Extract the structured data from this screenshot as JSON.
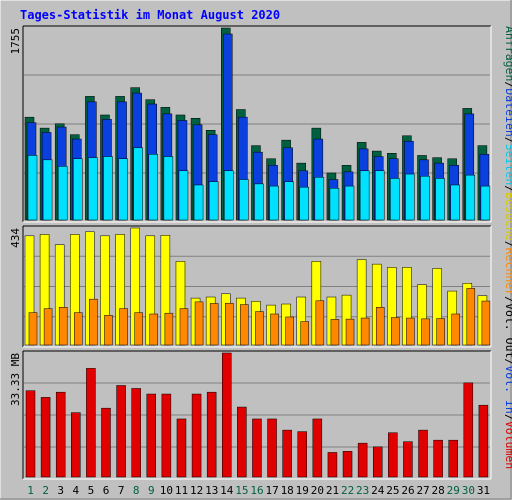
{
  "title": "Tages-Statistik im Monat August 2020",
  "colors": {
    "page_bg": "#c0c0c0",
    "plot_bg": "#c0c0c0",
    "title": "#0000ff",
    "anfragen": "#006040",
    "dateien": "#0a3fe0",
    "seiten": "#00e0ff",
    "besuche": "#ffff00",
    "rechner": "#ff8800",
    "volumen": "#e00000",
    "weekend_label": "#006040",
    "weekday_label": "#000000"
  },
  "right_labels": {
    "top": [
      {
        "text": "Anfragen",
        "color": "#006040"
      },
      {
        "text": "/",
        "color": "#000000"
      },
      {
        "text": "Dateien",
        "color": "#0a3fe0"
      },
      {
        "text": "/",
        "color": "#000000"
      },
      {
        "text": "Seiten",
        "color": "#00c8e8"
      },
      {
        "text": "/",
        "color": "#000000"
      },
      {
        "text": "Besuche",
        "color": "#d8c800"
      },
      {
        "text": "/",
        "color": "#000000"
      },
      {
        "text": "Rechner",
        "color": "#ff8800"
      },
      {
        "text": "/",
        "color": "#000000"
      },
      {
        "text": "Vol. Out",
        "color": "#000000"
      },
      {
        "text": "/",
        "color": "#000000"
      },
      {
        "text": "Vol. In",
        "color": "#0a3fe0"
      },
      {
        "text": "/",
        "color": "#000000"
      },
      {
        "text": "Volumen",
        "color": "#e00000"
      }
    ]
  },
  "chart_data": [
    {
      "type": "bar",
      "panel": "top",
      "ymax_label": "1755",
      "ymax": 1755,
      "categories": [
        "1",
        "2",
        "3",
        "4",
        "5",
        "6",
        "7",
        "8",
        "9",
        "10",
        "11",
        "12",
        "13",
        "14",
        "15",
        "16",
        "17",
        "18",
        "19",
        "20",
        "21",
        "22",
        "23",
        "24",
        "25",
        "26",
        "27",
        "28",
        "29",
        "30",
        "31"
      ],
      "weekend": [
        1,
        2,
        8,
        9,
        15,
        16,
        22,
        23,
        29,
        30
      ],
      "series": [
        {
          "name": "Anfragen",
          "values": [
            940,
            840,
            880,
            780,
            1130,
            960,
            1130,
            1210,
            1100,
            1030,
            960,
            930,
            820,
            1755,
            1010,
            680,
            560,
            730,
            520,
            840,
            430,
            500,
            710,
            630,
            610,
            770,
            590,
            570,
            560,
            1020,
            680
          ]
        },
        {
          "name": "Dateien",
          "values": [
            890,
            800,
            850,
            740,
            1080,
            920,
            1080,
            1160,
            1060,
            970,
            910,
            870,
            780,
            1700,
            940,
            620,
            500,
            660,
            450,
            740,
            370,
            440,
            650,
            580,
            560,
            720,
            550,
            520,
            500,
            970,
            600
          ]
        },
        {
          "name": "Seiten",
          "values": [
            590,
            550,
            490,
            560,
            570,
            580,
            560,
            660,
            600,
            580,
            450,
            320,
            350,
            450,
            370,
            330,
            310,
            350,
            300,
            390,
            290,
            310,
            450,
            450,
            380,
            420,
            400,
            380,
            320,
            410,
            310
          ]
        }
      ]
    },
    {
      "type": "bar",
      "panel": "middle",
      "ymax_label": "434",
      "ymax": 434,
      "categories": [
        "1",
        "2",
        "3",
        "4",
        "5",
        "6",
        "7",
        "8",
        "9",
        "10",
        "11",
        "12",
        "13",
        "14",
        "15",
        "16",
        "17",
        "18",
        "19",
        "20",
        "21",
        "22",
        "23",
        "24",
        "25",
        "26",
        "27",
        "28",
        "29",
        "30",
        "31"
      ],
      "series": [
        {
          "name": "Besuche",
          "values": [
            405,
            410,
            372,
            410,
            420,
            405,
            410,
            434,
            405,
            407,
            310,
            174,
            178,
            190,
            174,
            162,
            148,
            152,
            178,
            310,
            178,
            185,
            317,
            300,
            288,
            288,
            224,
            284,
            200,
            229,
            183
          ]
        },
        {
          "name": "Rechner",
          "values": [
            120,
            135,
            140,
            120,
            170,
            110,
            135,
            120,
            115,
            118,
            135,
            160,
            154,
            155,
            150,
            124,
            115,
            104,
            87,
            164,
            95,
            96,
            100,
            140,
            102,
            100,
            97,
            98,
            115,
            210,
            163
          ]
        }
      ]
    },
    {
      "type": "bar",
      "panel": "bottom",
      "ymax_label": "33.33 MB",
      "ymax": 33.33,
      "unit": "MB",
      "categories": [
        "1",
        "2",
        "3",
        "4",
        "5",
        "6",
        "7",
        "8",
        "9",
        "10",
        "11",
        "12",
        "13",
        "14",
        "15",
        "16",
        "17",
        "18",
        "19",
        "20",
        "21",
        "22",
        "23",
        "24",
        "25",
        "26",
        "27",
        "28",
        "29",
        "30",
        "31"
      ],
      "series": [
        {
          "name": "Volumen",
          "values": [
            23.2,
            21.4,
            22.8,
            17.3,
            29.2,
            18.5,
            24.6,
            23.8,
            22.3,
            22.3,
            15.6,
            22.3,
            22.8,
            33.33,
            18.8,
            15.6,
            15.6,
            12.6,
            12.2,
            15.6,
            6.6,
            6.9,
            9.1,
            8.1,
            11.9,
            9.5,
            12.6,
            9.9,
            9.9,
            25.3,
            19.3
          ]
        }
      ]
    }
  ]
}
